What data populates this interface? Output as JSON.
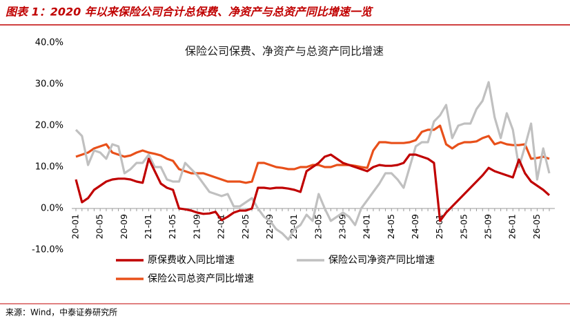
{
  "header": {
    "title": "图表 1：2020 年以来保险公司合计总保费、净资产与总资产同比增速一览"
  },
  "source": "来源：Wind，中泰证券研究所",
  "chart_data": {
    "type": "line",
    "title": "保险公司保费、净资产与总资产同比增速",
    "categories": [
      "20-01",
      null,
      null,
      null,
      "20-05",
      null,
      null,
      null,
      "20-09",
      null,
      null,
      null,
      "21-01",
      null,
      null,
      null,
      "21-05",
      null,
      null,
      null,
      "21-09",
      null,
      null,
      null,
      "22-01",
      null,
      null,
      null,
      "22-05",
      null,
      null,
      null,
      "22-09",
      null,
      null,
      null,
      "23-01",
      null,
      null,
      null,
      "23-05",
      null,
      null,
      null,
      "23-09",
      null,
      null,
      null,
      "24-01",
      null,
      null,
      null,
      "24-05",
      null,
      null,
      null,
      "24-09",
      null,
      null,
      null,
      "25-01",
      null,
      null,
      null,
      "25-05",
      null,
      null,
      null,
      "25-09",
      null,
      null,
      null,
      "26-01",
      null,
      null,
      null,
      "26-05",
      null,
      null
    ],
    "series": [
      {
        "name": "原保费收入同比增速",
        "color": "#c00000",
        "values": [
          7,
          1.5,
          2.5,
          4.5,
          5.5,
          6.5,
          7,
          7.2,
          7.2,
          7,
          6.5,
          6.2,
          12,
          9,
          6,
          5,
          4.5,
          0,
          -0.2,
          -0.5,
          -1,
          -1.3,
          -1.2,
          -0.8,
          -2.8,
          -2,
          -1,
          -0.5,
          -0.5,
          0,
          5,
          5,
          4.8,
          5,
          5,
          4.8,
          4.5,
          4,
          9,
          10,
          11,
          12.5,
          13,
          12,
          11,
          10.5,
          10,
          9.5,
          9,
          10,
          10.5,
          10.3,
          10.3,
          10.5,
          11,
          13,
          13,
          12.5,
          12,
          11,
          -3,
          -1,
          0.5,
          2,
          3.5,
          5,
          6.5,
          8,
          9.8,
          9,
          8.5,
          8,
          7.5,
          11.8,
          8.5,
          6.5,
          5.5,
          4.5,
          3.2
        ]
      },
      {
        "name": "保险公司净资产同比增速",
        "color": "#c0c0c0",
        "values": [
          19,
          17.5,
          10.5,
          14,
          13.5,
          12,
          15.5,
          15,
          8.5,
          9.5,
          11,
          11,
          13,
          10,
          10,
          7,
          6.5,
          6.5,
          11,
          9.5,
          8,
          6,
          4,
          3.5,
          3,
          3.5,
          0.5,
          0.5,
          1.5,
          2.5,
          0,
          -2,
          -3,
          -5,
          -6,
          -7.5,
          -5,
          -4,
          -1.5,
          -3,
          3.5,
          0,
          -3,
          -2,
          -1,
          -2,
          -4,
          0,
          2,
          4,
          6,
          8.5,
          8.5,
          7,
          5,
          10,
          15,
          16,
          16,
          21,
          22.5,
          25,
          17,
          20,
          20.5,
          20.5,
          24,
          26,
          30.5,
          22,
          17,
          23,
          19,
          10,
          15,
          20.5,
          7,
          14.5,
          8.5
        ]
      },
      {
        "name": "保险公司总资产同比增速",
        "color": "#e8501a",
        "values": [
          12.5,
          13,
          13.5,
          14.5,
          15,
          15.5,
          13.5,
          13,
          12.5,
          12.8,
          13.5,
          14,
          13.5,
          13.2,
          12.8,
          12,
          11.5,
          9.5,
          9,
          8.5,
          8.5,
          8.5,
          8,
          7.5,
          7,
          6.5,
          6.5,
          6.5,
          6.2,
          6.5,
          11,
          11,
          10.5,
          10,
          9.8,
          9.5,
          9.5,
          10,
          10,
          10.5,
          10.5,
          10,
          10,
          10.5,
          10.5,
          10.5,
          10.3,
          10,
          9.8,
          14,
          16,
          16,
          15.8,
          15.8,
          15.8,
          16,
          16.5,
          18.5,
          19,
          19,
          20,
          15.5,
          14.5,
          15.5,
          16,
          16,
          16.2,
          17,
          17.5,
          15.5,
          16,
          15.5,
          15.3,
          15.3,
          15.5,
          12,
          12.2,
          12.5,
          12
        ]
      }
    ],
    "ylim": [
      -10,
      40
    ],
    "yticks": [
      {
        "value": -10,
        "label": "-10.0%"
      },
      {
        "value": 0,
        "label": "0.0%"
      },
      {
        "value": 10,
        "label": "10.0%"
      },
      {
        "value": 20,
        "label": "20.0%"
      },
      {
        "value": 30,
        "label": "30.0%"
      },
      {
        "value": 40,
        "label": "40.0%"
      }
    ],
    "grid": false
  }
}
